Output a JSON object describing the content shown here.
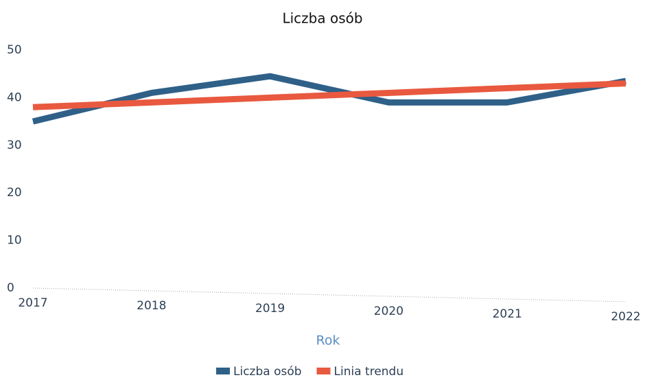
{
  "chart_data": {
    "type": "line",
    "title": "Liczba osób",
    "x_label": "Rok",
    "categories": [
      "2017",
      "2018",
      "2019",
      "2020",
      "2021",
      "2022"
    ],
    "series": [
      {
        "name": "Liczba osób",
        "color": "#2f6088",
        "values": [
          35,
          41,
          44.5,
          39,
          39,
          43.5
        ]
      },
      {
        "name": "Linia trendu",
        "color": "#e8593f",
        "values": [
          38,
          39,
          40,
          41,
          42,
          43
        ]
      }
    ],
    "ylim": [
      0,
      50
    ],
    "yticks": [
      0,
      10,
      20,
      30,
      40,
      50
    ],
    "grid": false,
    "legend": "bottom"
  }
}
